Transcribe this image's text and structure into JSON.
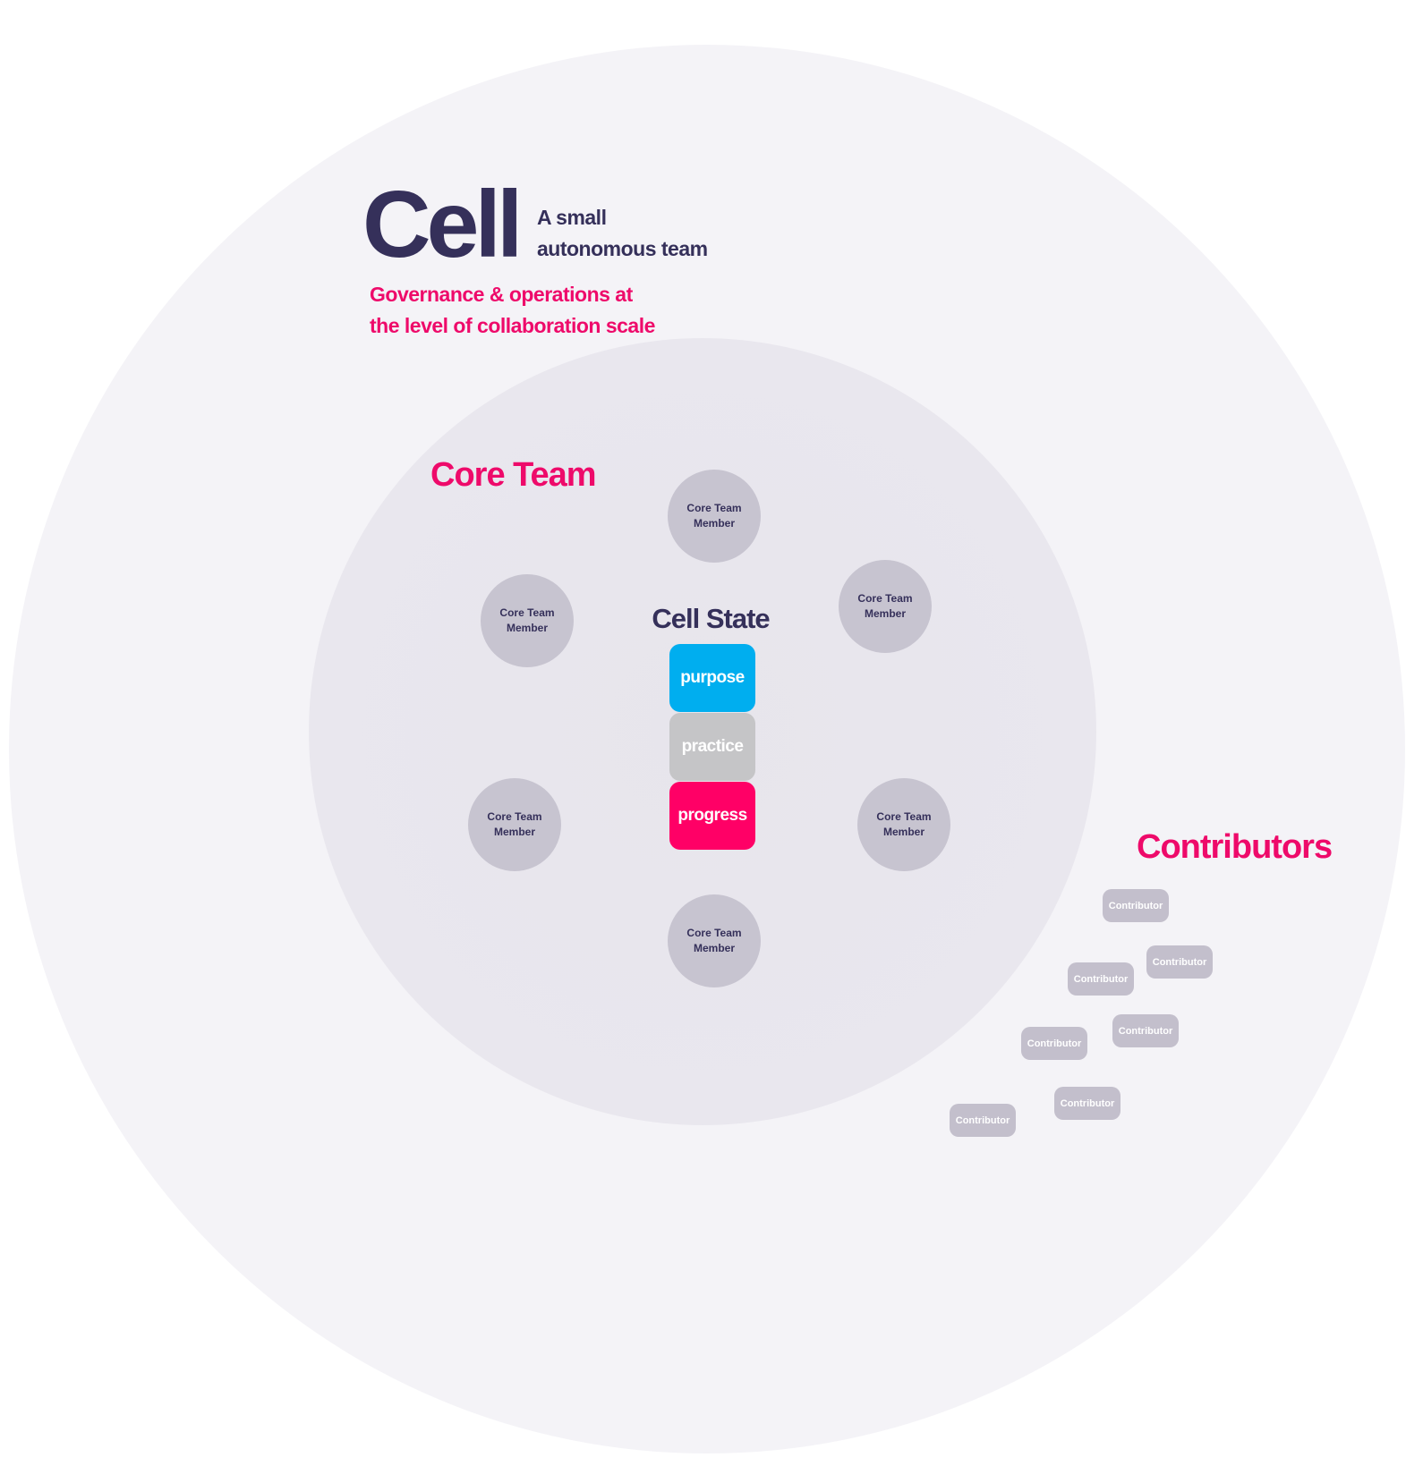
{
  "cell": {
    "title": "Cell",
    "subtitle_lines": [
      "A small",
      "autonomous team"
    ],
    "tagline_lines": [
      "Governance & operations at",
      "the level of collaboration scale"
    ]
  },
  "core_team": {
    "label": "Core Team",
    "members": [
      "Core Team\nMember",
      "Core Team\nMember",
      "Core Team\nMember",
      "Core Team\nMember",
      "Core Team\nMember",
      "Core Team\nMember"
    ]
  },
  "cell_state": {
    "title": "Cell State",
    "items": [
      {
        "label": "purpose",
        "color": "#00aeef"
      },
      {
        "label": "practice",
        "color": "#c5c5c7"
      },
      {
        "label": "progress",
        "color": "#ff0066"
      }
    ]
  },
  "contributors": {
    "label": "Contributors",
    "items": [
      "Contributor",
      "Contributor",
      "Contributor",
      "Contributor",
      "Contributor",
      "Contributor",
      "Contributor"
    ]
  },
  "colors": {
    "primary_text": "#35305a",
    "accent": "#ee0a6a",
    "member_fill": "#c7c4d0",
    "contributor_fill": "#c3bfcc"
  }
}
